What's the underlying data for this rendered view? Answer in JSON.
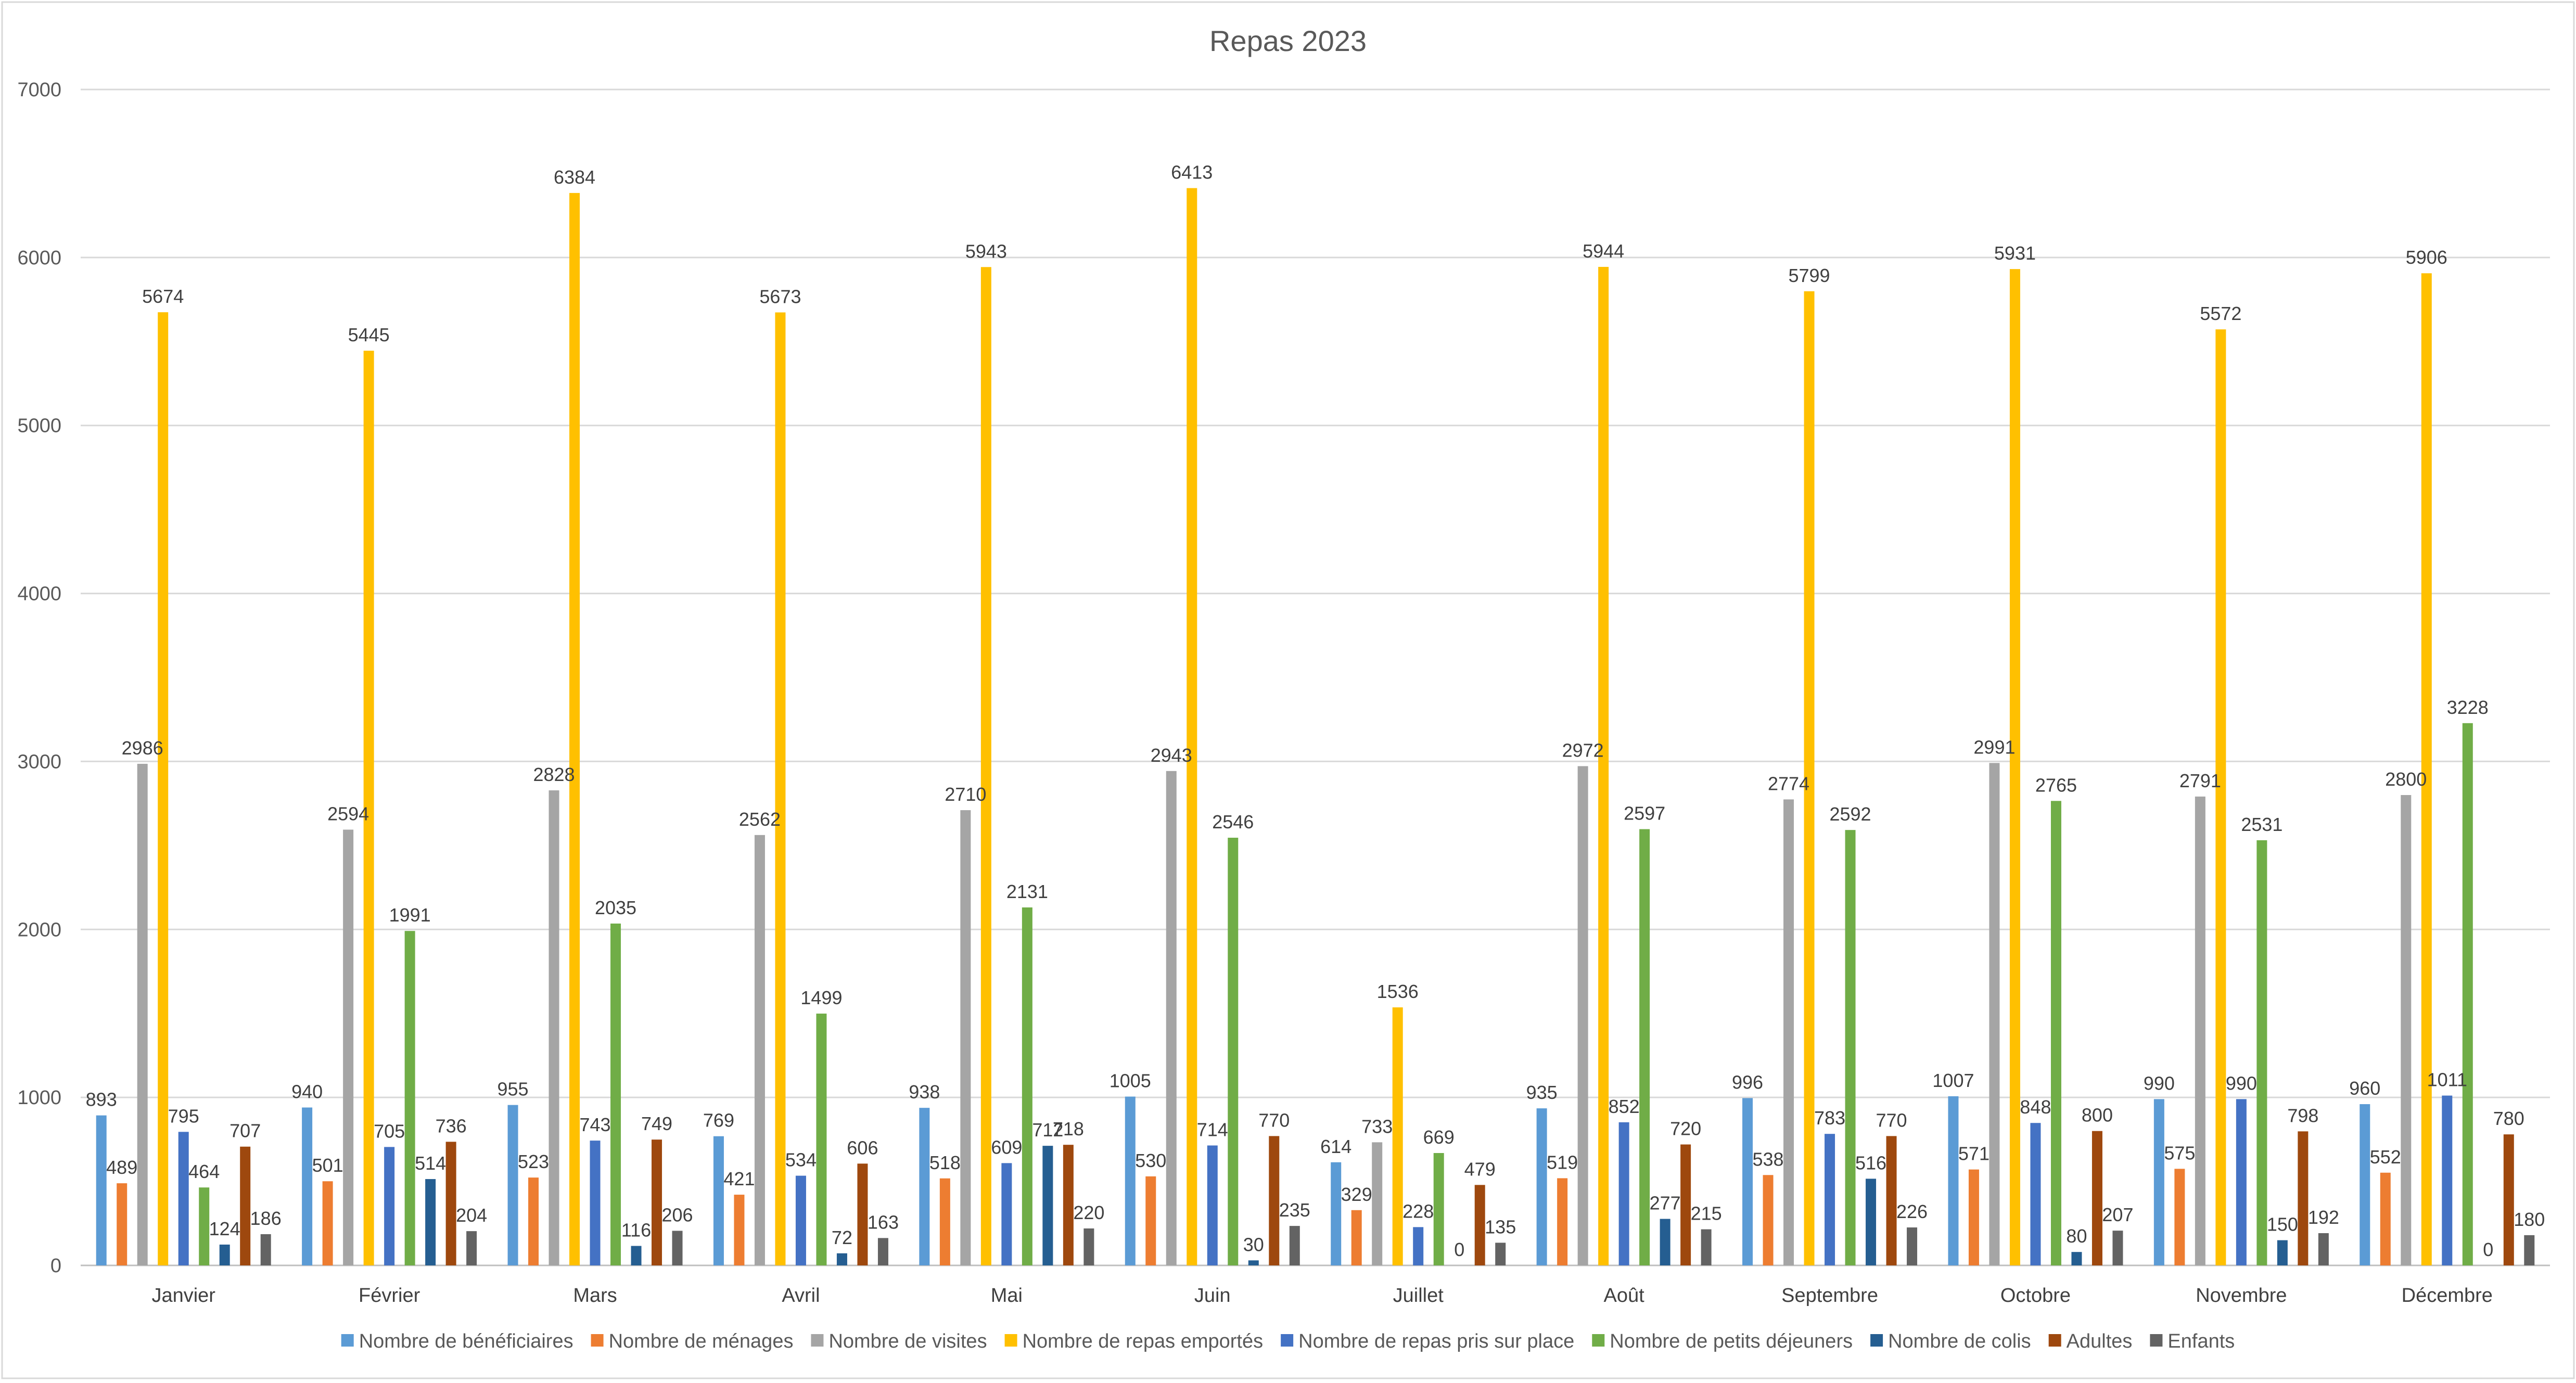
{
  "chart_data": {
    "type": "bar",
    "title": "Repas 2023",
    "xlabel": "",
    "ylabel": "",
    "ylim": [
      0,
      7000
    ],
    "yticks": [
      0,
      1000,
      2000,
      3000,
      4000,
      5000,
      6000,
      7000
    ],
    "grid": true,
    "legend_position": "bottom",
    "categories": [
      "Janvier",
      "Février",
      "Mars",
      "Avril",
      "Mai",
      "Juin",
      "Juillet",
      "Août",
      "Septembre",
      "Octobre",
      "Novembre",
      "Décembre"
    ],
    "series": [
      {
        "name": "Nombre de bénéficiaires",
        "color": "#5B9BD5",
        "values": [
          893,
          940,
          955,
          769,
          938,
          1005,
          614,
          935,
          996,
          1007,
          990,
          960
        ]
      },
      {
        "name": "Nombre de ménages",
        "color": "#ED7D31",
        "values": [
          489,
          501,
          523,
          421,
          518,
          530,
          329,
          519,
          538,
          571,
          575,
          552
        ]
      },
      {
        "name": "Nombre de visites",
        "color": "#A5A5A5",
        "values": [
          2986,
          2594,
          2828,
          2562,
          2710,
          2943,
          733,
          2972,
          2774,
          2991,
          2791,
          2800
        ]
      },
      {
        "name": "Nombre de repas emportés",
        "color": "#FFC000",
        "values": [
          5674,
          5445,
          6384,
          5673,
          5943,
          6413,
          1536,
          5944,
          5799,
          5931,
          5572,
          5906
        ]
      },
      {
        "name": "Nombre de repas pris sur place",
        "color": "#4472C4",
        "values": [
          795,
          705,
          743,
          534,
          609,
          714,
          228,
          852,
          783,
          848,
          990,
          1011
        ]
      },
      {
        "name": "Nombre de petits déjeuners",
        "color": "#70AD47",
        "values": [
          464,
          1991,
          2035,
          1499,
          2131,
          2546,
          669,
          2597,
          2592,
          2765,
          2531,
          3228
        ]
      },
      {
        "name": "Nombre de colis",
        "color": "#255E91",
        "values": [
          124,
          514,
          116,
          72,
          712,
          30,
          0,
          277,
          516,
          80,
          150,
          0
        ]
      },
      {
        "name": "Adultes",
        "color": "#9E480E",
        "values": [
          707,
          736,
          749,
          606,
          718,
          770,
          479,
          720,
          770,
          800,
          798,
          780
        ]
      },
      {
        "name": "Enfants",
        "color": "#636363",
        "values": [
          186,
          204,
          206,
          163,
          220,
          235,
          135,
          215,
          226,
          207,
          192,
          180
        ]
      }
    ]
  }
}
